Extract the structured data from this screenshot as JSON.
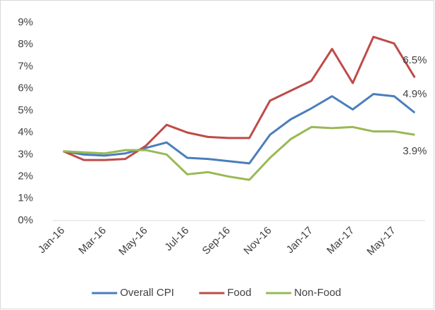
{
  "chart_data": {
    "type": "line",
    "categories": [
      "Jan-16",
      null,
      "Mar-16",
      null,
      "May-16",
      null,
      "Jul-16",
      null,
      "Sep-16",
      null,
      "Nov-16",
      null,
      "Jan-17",
      null,
      "Mar-17",
      null,
      "May-17",
      null
    ],
    "series": [
      {
        "name": "Overall CPI",
        "color": "#4a7ebb",
        "values": [
          3.15,
          3.0,
          2.95,
          3.05,
          3.3,
          3.55,
          2.85,
          2.8,
          2.7,
          2.6,
          3.9,
          4.6,
          5.1,
          5.65,
          5.05,
          5.75,
          5.65,
          4.9
        ],
        "value_labels": [
          null,
          null,
          null,
          null,
          null,
          null,
          null,
          null,
          null,
          null,
          null,
          null,
          null,
          null,
          null,
          null,
          null,
          "4.9%"
        ]
      },
      {
        "name": "Food",
        "color": "#be4b48",
        "values": [
          3.15,
          2.75,
          2.75,
          2.8,
          3.4,
          4.35,
          4.0,
          3.8,
          3.75,
          3.75,
          5.45,
          5.9,
          6.35,
          7.8,
          6.25,
          8.35,
          8.05,
          6.5
        ],
        "value_labels": [
          null,
          null,
          null,
          null,
          null,
          null,
          null,
          null,
          null,
          null,
          null,
          null,
          null,
          null,
          null,
          null,
          null,
          "6.5%"
        ]
      },
      {
        "name": "Non-Food",
        "color": "#98b954",
        "values": [
          3.15,
          3.1,
          3.05,
          3.2,
          3.2,
          3.0,
          2.1,
          2.2,
          2.0,
          1.85,
          2.85,
          3.7,
          4.25,
          4.2,
          4.25,
          4.05,
          4.05,
          3.9
        ],
        "value_labels": [
          null,
          null,
          null,
          null,
          null,
          null,
          null,
          null,
          null,
          null,
          null,
          null,
          null,
          null,
          null,
          null,
          null,
          "3.9%"
        ]
      }
    ],
    "ylim": [
      0,
      9
    ],
    "yticks": [
      {
        "value": 0,
        "label": "0%"
      },
      {
        "value": 1,
        "label": "1%"
      },
      {
        "value": 2,
        "label": "2%"
      },
      {
        "value": 3,
        "label": "3%"
      },
      {
        "value": 4,
        "label": "4%"
      },
      {
        "value": 5,
        "label": "5%"
      },
      {
        "value": 6,
        "label": "6%"
      },
      {
        "value": 7,
        "label": "7%"
      },
      {
        "value": 8,
        "label": "8%"
      },
      {
        "value": 9,
        "label": "9%"
      }
    ],
    "grid": false,
    "legend": "bottom"
  }
}
